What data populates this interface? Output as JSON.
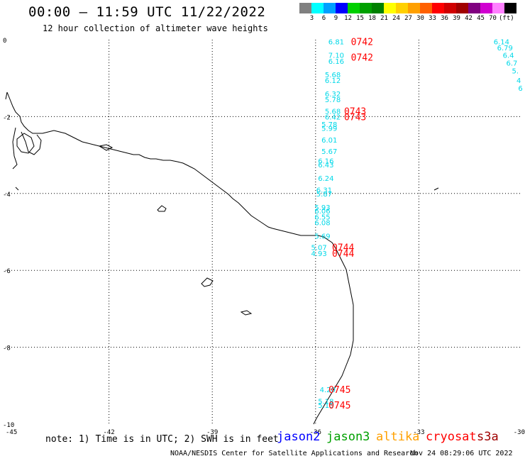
{
  "title": "00:00 – 11:59 UTC 11/22/2022",
  "subtitle": "12 hour collection of altimeter wave heights",
  "legend": {
    "colors": [
      "#808080",
      "#00ffff",
      "#00a0ff",
      "#0000ff",
      "#00d000",
      "#00a000",
      "#008000",
      "#ffff00",
      "#ffd000",
      "#ffa000",
      "#ff6000",
      "#ff0000",
      "#d00000",
      "#a00000",
      "#800080",
      "#d000d0",
      "#ff80ff",
      "#000000"
    ],
    "labels": [
      "3",
      "6",
      "9",
      "12",
      "15",
      "18",
      "21",
      "24",
      "27",
      "30",
      "33",
      "36",
      "39",
      "42",
      "45",
      "70",
      "(ft)"
    ]
  },
  "axes": {
    "x_ticks": [
      "-45",
      "-42",
      "-39",
      "-36",
      "-33",
      "-30"
    ],
    "y_ticks": [
      "0",
      "-2",
      "-4",
      "-6",
      "-8",
      "-10"
    ]
  },
  "swh_points": [
    {
      "v": "6.81",
      "lon": -35.4,
      "lat": -0.05
    },
    {
      "v": "7.10",
      "lon": -35.4,
      "lat": -0.4
    },
    {
      "v": "6.16",
      "lon": -35.4,
      "lat": -0.55
    },
    {
      "v": "5.68",
      "lon": -35.5,
      "lat": -0.9
    },
    {
      "v": "6.12",
      "lon": -35.5,
      "lat": -1.05
    },
    {
      "v": "6.32",
      "lon": -35.5,
      "lat": -1.4
    },
    {
      "v": "5.78",
      "lon": -35.5,
      "lat": -1.55
    },
    {
      "v": "5.68",
      "lon": -35.5,
      "lat": -1.85
    },
    {
      "v": "6.42",
      "lon": -35.5,
      "lat": -2.0
    },
    {
      "v": "5.78",
      "lon": -35.6,
      "lat": -2.2
    },
    {
      "v": "5.99",
      "lon": -35.6,
      "lat": -2.3
    },
    {
      "v": "6.01",
      "lon": -35.6,
      "lat": -2.6
    },
    {
      "v": "5.67",
      "lon": -35.6,
      "lat": -2.9
    },
    {
      "v": "6.16",
      "lon": -35.7,
      "lat": -3.15
    },
    {
      "v": "6.43",
      "lon": -35.7,
      "lat": -3.25
    },
    {
      "v": "6.24",
      "lon": -35.7,
      "lat": -3.6
    },
    {
      "v": "6.31",
      "lon": -35.75,
      "lat": -3.9
    },
    {
      "v": "5.87",
      "lon": -35.75,
      "lat": -4.0
    },
    {
      "v": "5.93",
      "lon": -35.8,
      "lat": -4.35
    },
    {
      "v": "6.06",
      "lon": -35.8,
      "lat": -4.45
    },
    {
      "v": "6.55",
      "lon": -35.8,
      "lat": -4.6
    },
    {
      "v": "6.08",
      "lon": -35.8,
      "lat": -4.75
    },
    {
      "v": "5.69",
      "lon": -35.8,
      "lat": -5.1
    },
    {
      "v": "5.07",
      "lon": -35.9,
      "lat": -5.4
    },
    {
      "v": "4.93",
      "lon": -35.9,
      "lat": -5.55
    },
    {
      "v": "4.20",
      "lon": -35.65,
      "lat": -9.1
    },
    {
      "v": "5.18",
      "lon": -35.7,
      "lat": -9.4
    },
    {
      "v": "5.15",
      "lon": -35.7,
      "lat": -9.5
    },
    {
      "v": "6.14",
      "lon": -30.6,
      "lat": -0.05
    },
    {
      "v": "6.79",
      "lon": -30.5,
      "lat": -0.2
    },
    {
      "v": "6.4",
      "lon": -30.4,
      "lat": -0.4
    },
    {
      "v": "6.7",
      "lon": -30.3,
      "lat": -0.6
    },
    {
      "v": "5.",
      "lon": -30.2,
      "lat": -0.8
    },
    {
      "v": "4",
      "lon": -30.1,
      "lat": -1.05
    },
    {
      "v": "6",
      "lon": -30.05,
      "lat": -1.25
    }
  ],
  "time_labels": [
    {
      "t": "0742",
      "lon": -34.65,
      "lat": -0.05
    },
    {
      "t": "0742",
      "lon": -34.65,
      "lat": -0.45
    },
    {
      "t": "0743",
      "lon": -34.85,
      "lat": -1.85
    },
    {
      "t": "0743",
      "lon": -34.85,
      "lat": -2.0
    },
    {
      "t": "0744",
      "lon": -35.2,
      "lat": -5.4
    },
    {
      "t": "0744",
      "lon": -35.2,
      "lat": -5.55
    },
    {
      "t": "0745",
      "lon": -35.3,
      "lat": -9.1
    },
    {
      "t": "0745",
      "lon": -35.3,
      "lat": -9.5
    }
  ],
  "note": "note: 1) Time is in UTC; 2) SWH is in feet",
  "satellites": [
    {
      "name": "jason2",
      "color": "#0000ff"
    },
    {
      "name": "jason3",
      "color": "#00a000"
    },
    {
      "name": "altika",
      "color": "#ffa000"
    },
    {
      "name": "cryosat",
      "color": "#ff0000"
    },
    {
      "name": "s3a",
      "color": "#a00000"
    }
  ],
  "credit": "NOAA/NESDIS Center for Satellite Applications and Research",
  "timestamp": "Nov 24 08:29:06 UTC 2022"
}
